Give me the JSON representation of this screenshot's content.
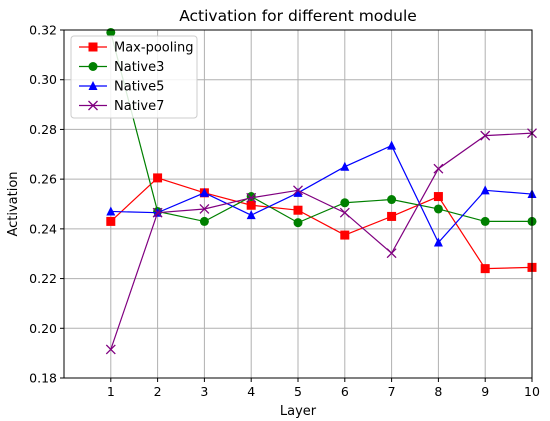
{
  "chart_data": {
    "type": "line",
    "title": "Activation for different module",
    "xlabel": "Layer",
    "ylabel": "Activation",
    "x": [
      1,
      2,
      3,
      4,
      5,
      6,
      7,
      8,
      9,
      10
    ],
    "x_tick_labels": [
      "1",
      "2",
      "3",
      "4",
      "5",
      "6",
      "7",
      "8",
      "9",
      "10"
    ],
    "xlim": [
      0,
      10
    ],
    "ylim": [
      0.18,
      0.32
    ],
    "y_ticks": [
      0.18,
      0.2,
      0.22,
      0.24,
      0.26,
      0.28,
      0.3,
      0.32
    ],
    "y_tick_labels": [
      "0.18",
      "0.20",
      "0.22",
      "0.24",
      "0.26",
      "0.28",
      "0.30",
      "0.32"
    ],
    "grid": true,
    "legend_position": "top-left",
    "series": [
      {
        "name": "Max-pooling",
        "color": "#ff0000",
        "marker": "square",
        "values": [
          0.243,
          0.2605,
          0.2545,
          0.2495,
          0.2475,
          0.2375,
          0.245,
          0.253,
          0.224,
          0.2245
        ]
      },
      {
        "name": "Native3",
        "color": "#008000",
        "marker": "circle",
        "values": [
          0.319,
          0.247,
          0.243,
          0.253,
          0.2425,
          0.2505,
          0.2518,
          0.248,
          0.243,
          0.243
        ]
      },
      {
        "name": "Native5",
        "color": "#0000ff",
        "marker": "triangle",
        "values": [
          0.247,
          0.2465,
          0.2545,
          0.2455,
          0.2545,
          0.265,
          0.2735,
          0.2345,
          0.2555,
          0.254
        ]
      },
      {
        "name": "Native7",
        "color": "#800080",
        "marker": "x",
        "values": [
          0.1915,
          0.2465,
          0.248,
          0.2525,
          0.2555,
          0.2465,
          0.2302,
          0.2642,
          0.2775,
          0.2785
        ]
      }
    ]
  }
}
